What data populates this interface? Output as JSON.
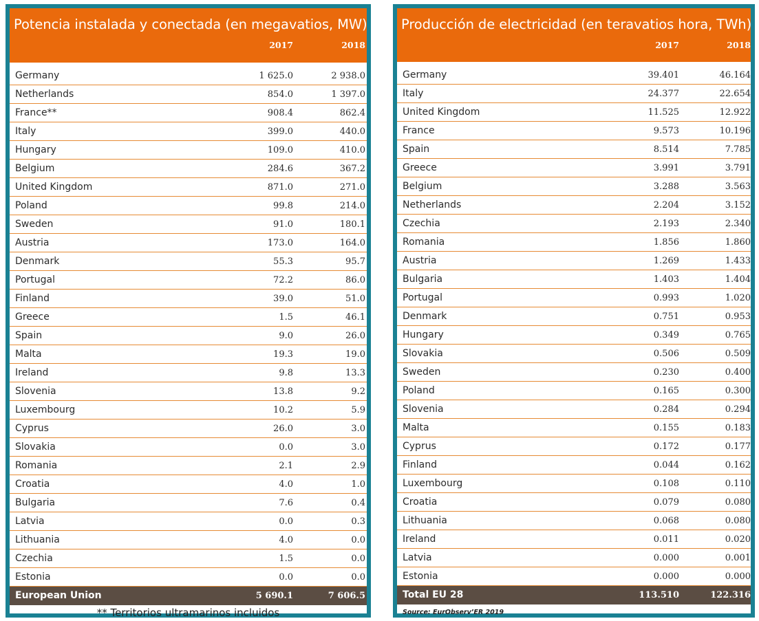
{
  "left": {
    "title": "Potencia instalada y conectada (en megavatios, MW)",
    "year1": "2017",
    "year2": "2018",
    "rows": [
      {
        "country": "Germany",
        "v2017": "1 625.0",
        "v2018": "2 938.0"
      },
      {
        "country": "Netherlands",
        "v2017": "854.0",
        "v2018": "1 397.0"
      },
      {
        "country": "France**",
        "v2017": "908.4",
        "v2018": "862.4"
      },
      {
        "country": "Italy",
        "v2017": "399.0",
        "v2018": "440.0"
      },
      {
        "country": "Hungary",
        "v2017": "109.0",
        "v2018": "410.0"
      },
      {
        "country": "Belgium",
        "v2017": "284.6",
        "v2018": "367.2"
      },
      {
        "country": "United Kingdom",
        "v2017": "871.0",
        "v2018": "271.0"
      },
      {
        "country": "Poland",
        "v2017": "99.8",
        "v2018": "214.0"
      },
      {
        "country": "Sweden",
        "v2017": "91.0",
        "v2018": "180.1"
      },
      {
        "country": "Austria",
        "v2017": "173.0",
        "v2018": "164.0"
      },
      {
        "country": "Denmark",
        "v2017": "55.3",
        "v2018": "95.7"
      },
      {
        "country": "Portugal",
        "v2017": "72.2",
        "v2018": "86.0"
      },
      {
        "country": "Finland",
        "v2017": "39.0",
        "v2018": "51.0"
      },
      {
        "country": "Greece",
        "v2017": "1.5",
        "v2018": "46.1"
      },
      {
        "country": "Spain",
        "v2017": "9.0",
        "v2018": "26.0"
      },
      {
        "country": "Malta",
        "v2017": "19.3",
        "v2018": "19.0"
      },
      {
        "country": "Ireland",
        "v2017": "9.8",
        "v2018": "13.3"
      },
      {
        "country": "Slovenia",
        "v2017": "13.8",
        "v2018": "9.2"
      },
      {
        "country": "Luxembourg",
        "v2017": "10.2",
        "v2018": "5.9"
      },
      {
        "country": "Cyprus",
        "v2017": "26.0",
        "v2018": "3.0"
      },
      {
        "country": "Slovakia",
        "v2017": "0.0",
        "v2018": "3.0"
      },
      {
        "country": "Romania",
        "v2017": "2.1",
        "v2018": "2.9"
      },
      {
        "country": "Croatia",
        "v2017": "4.0",
        "v2018": "1.0"
      },
      {
        "country": "Bulgaria",
        "v2017": "7.6",
        "v2018": "0.4"
      },
      {
        "country": "Latvia",
        "v2017": "0.0",
        "v2018": "0.3"
      },
      {
        "country": "Lithuania",
        "v2017": "4.0",
        "v2018": "0.0"
      },
      {
        "country": "Czechia",
        "v2017": "1.5",
        "v2018": "0.0"
      },
      {
        "country": "Estonia",
        "v2017": "0.0",
        "v2018": "0.0"
      }
    ],
    "total": {
      "label": "European Union",
      "v2017": "5 690.1",
      "v2018": "7 606.5"
    },
    "note": "** Territorios ultramarinos incluidos"
  },
  "right": {
    "title": "Producción de electricidad (en teravatios hora, TWh)",
    "year1": "2017",
    "year2": "2018",
    "rows": [
      {
        "country": "Germany",
        "v2017": "39.401",
        "v2018": "46.164"
      },
      {
        "country": "Italy",
        "v2017": "24.377",
        "v2018": "22.654"
      },
      {
        "country": "United Kingdom",
        "v2017": "11.525",
        "v2018": "12.922"
      },
      {
        "country": "France",
        "v2017": "9.573",
        "v2018": "10.196"
      },
      {
        "country": "Spain",
        "v2017": "8.514",
        "v2018": "7.785"
      },
      {
        "country": "Greece",
        "v2017": "3.991",
        "v2018": "3.791"
      },
      {
        "country": "Belgium",
        "v2017": "3.288",
        "v2018": "3.563"
      },
      {
        "country": "Netherlands",
        "v2017": "2.204",
        "v2018": "3.152"
      },
      {
        "country": "Czechia",
        "v2017": "2.193",
        "v2018": "2.340"
      },
      {
        "country": "Romania",
        "v2017": "1.856",
        "v2018": "1.860"
      },
      {
        "country": "Austria",
        "v2017": "1.269",
        "v2018": "1.433"
      },
      {
        "country": "Bulgaria",
        "v2017": "1.403",
        "v2018": "1.404"
      },
      {
        "country": "Portugal",
        "v2017": "0.993",
        "v2018": "1.020"
      },
      {
        "country": "Denmark",
        "v2017": "0.751",
        "v2018": "0.953"
      },
      {
        "country": "Hungary",
        "v2017": "0.349",
        "v2018": "0.765"
      },
      {
        "country": "Slovakia",
        "v2017": "0.506",
        "v2018": "0.509"
      },
      {
        "country": "Sweden",
        "v2017": "0.230",
        "v2018": "0.400"
      },
      {
        "country": "Poland",
        "v2017": "0.165",
        "v2018": "0.300"
      },
      {
        "country": "Slovenia",
        "v2017": "0.284",
        "v2018": "0.294"
      },
      {
        "country": "Malta",
        "v2017": "0.155",
        "v2018": "0.183"
      },
      {
        "country": "Cyprus",
        "v2017": "0.172",
        "v2018": "0.177"
      },
      {
        "country": "Finland",
        "v2017": "0.044",
        "v2018": "0.162"
      },
      {
        "country": "Luxembourg",
        "v2017": "0.108",
        "v2018": "0.110"
      },
      {
        "country": "Croatia",
        "v2017": "0.079",
        "v2018": "0.080"
      },
      {
        "country": "Lithuania",
        "v2017": "0.068",
        "v2018": "0.080"
      },
      {
        "country": "Ireland",
        "v2017": "0.011",
        "v2018": "0.020"
      },
      {
        "country": "Latvia",
        "v2017": "0.000",
        "v2018": "0.001"
      },
      {
        "country": "Estonia",
        "v2017": "0.000",
        "v2018": "0.000"
      }
    ],
    "total": {
      "label": "Total EU 28",
      "v2017": "113.510",
      "v2018": "122.316"
    },
    "source": "Source: EurObserv’ER 2019"
  },
  "colors": {
    "header": "#ea6a0c",
    "frame": "#1a8193",
    "total_bar": "#5b4d43",
    "row_rule": "#e68a33"
  }
}
